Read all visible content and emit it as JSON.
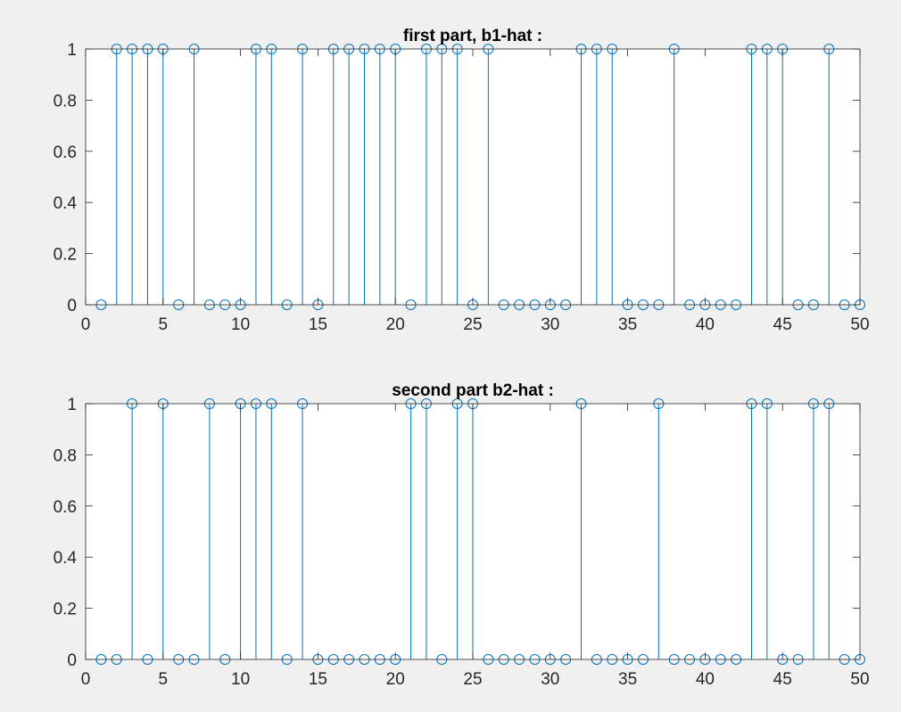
{
  "colors": {
    "figure_background": "#f0f0f0",
    "axes_background": "#ffffff",
    "axes_line": "#262626",
    "series": "#0072bd"
  },
  "chart_data": [
    {
      "type": "stem",
      "title": "first part, b1-hat :",
      "xlabel": "",
      "ylabel": "",
      "xlim": [
        0,
        50
      ],
      "ylim": [
        0,
        1
      ],
      "xticks": [
        0,
        5,
        10,
        15,
        20,
        25,
        30,
        35,
        40,
        45,
        50
      ],
      "xtick_labels": [
        "0",
        "5",
        "10",
        "15",
        "20",
        "25",
        "30",
        "35",
        "40",
        "45",
        "50"
      ],
      "yticks": [
        0,
        0.2,
        0.4,
        0.6,
        0.8,
        1
      ],
      "ytick_labels": [
        "0",
        "0.2",
        "0.4",
        "0.6",
        "0.8",
        "1"
      ],
      "grid": false,
      "marker": "circle",
      "series": [
        {
          "x": [
            1,
            2,
            3,
            4,
            5,
            6,
            7,
            8,
            9,
            10,
            11,
            12,
            13,
            14,
            15,
            16,
            17,
            18,
            19,
            20,
            21,
            22,
            23,
            24,
            25,
            26,
            27,
            28,
            29,
            30,
            31,
            32,
            33,
            34,
            35,
            36,
            37,
            38,
            39,
            40,
            41,
            42,
            43,
            44,
            45,
            46,
            47,
            48,
            49,
            50
          ],
          "values": [
            0,
            1,
            1,
            1,
            1,
            0,
            1,
            0,
            0,
            0,
            1,
            1,
            0,
            1,
            0,
            1,
            1,
            1,
            1,
            1,
            0,
            1,
            1,
            1,
            0,
            1,
            0,
            0,
            0,
            0,
            0,
            1,
            1,
            1,
            0,
            0,
            0,
            1,
            0,
            0,
            0,
            0,
            1,
            1,
            1,
            0,
            0,
            1,
            0,
            0
          ]
        }
      ]
    },
    {
      "type": "stem",
      "title": "second part b2-hat :",
      "xlabel": "",
      "ylabel": "",
      "xlim": [
        0,
        50
      ],
      "ylim": [
        0,
        1
      ],
      "xticks": [
        0,
        5,
        10,
        15,
        20,
        25,
        30,
        35,
        40,
        45,
        50
      ],
      "xtick_labels": [
        "0",
        "5",
        "10",
        "15",
        "20",
        "25",
        "30",
        "35",
        "40",
        "45",
        "50"
      ],
      "yticks": [
        0,
        0.2,
        0.4,
        0.6,
        0.8,
        1
      ],
      "ytick_labels": [
        "0",
        "0.2",
        "0.4",
        "0.6",
        "0.8",
        "1"
      ],
      "grid": false,
      "marker": "circle",
      "series": [
        {
          "x": [
            1,
            2,
            3,
            4,
            5,
            6,
            7,
            8,
            9,
            10,
            11,
            12,
            13,
            14,
            15,
            16,
            17,
            18,
            19,
            20,
            21,
            22,
            23,
            24,
            25,
            26,
            27,
            28,
            29,
            30,
            31,
            32,
            33,
            34,
            35,
            36,
            37,
            38,
            39,
            40,
            41,
            42,
            43,
            44,
            45,
            46,
            47,
            48,
            49,
            50
          ],
          "values": [
            0,
            0,
            1,
            0,
            1,
            0,
            0,
            1,
            0,
            1,
            1,
            1,
            0,
            1,
            0,
            0,
            0,
            0,
            0,
            0,
            1,
            1,
            0,
            1,
            1,
            0,
            0,
            0,
            0,
            0,
            0,
            1,
            0,
            0,
            0,
            0,
            1,
            0,
            0,
            0,
            0,
            0,
            1,
            1,
            0,
            0,
            1,
            1,
            0,
            0
          ]
        }
      ]
    }
  ]
}
